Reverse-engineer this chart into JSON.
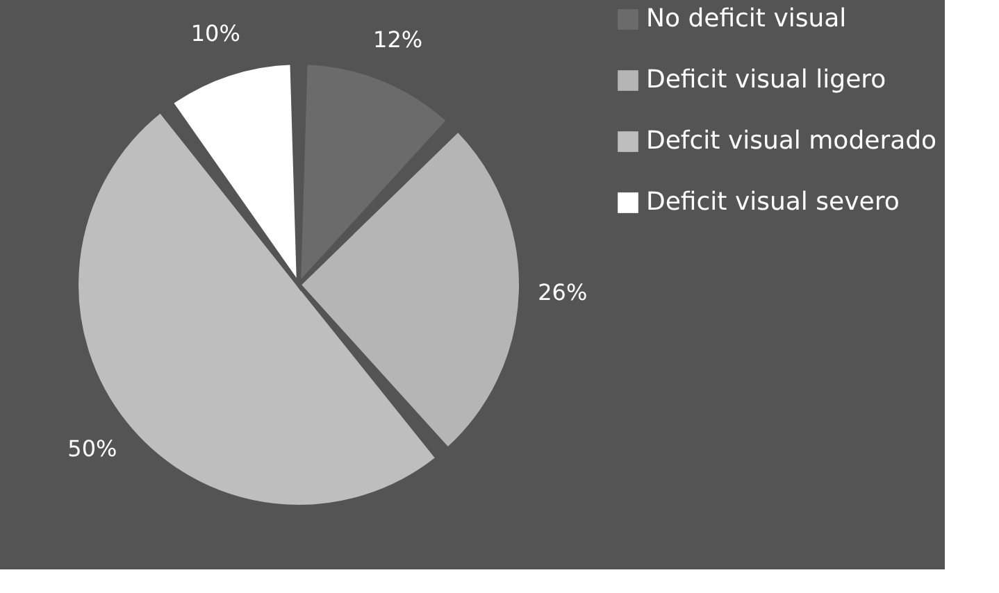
{
  "chart_data": {
    "type": "pie",
    "categories": [
      "No deficit visual",
      "Deficit visual ligero",
      "Defcit visual moderado",
      "Deficit visual severo"
    ],
    "values": [
      12,
      26,
      50,
      10
    ],
    "value_labels": [
      "12%",
      "26%",
      "50%",
      "10%"
    ],
    "colors": [
      "#6b6b6b",
      "#b5b5b5",
      "#bebebe",
      "#ffffff"
    ],
    "legend": "right"
  }
}
